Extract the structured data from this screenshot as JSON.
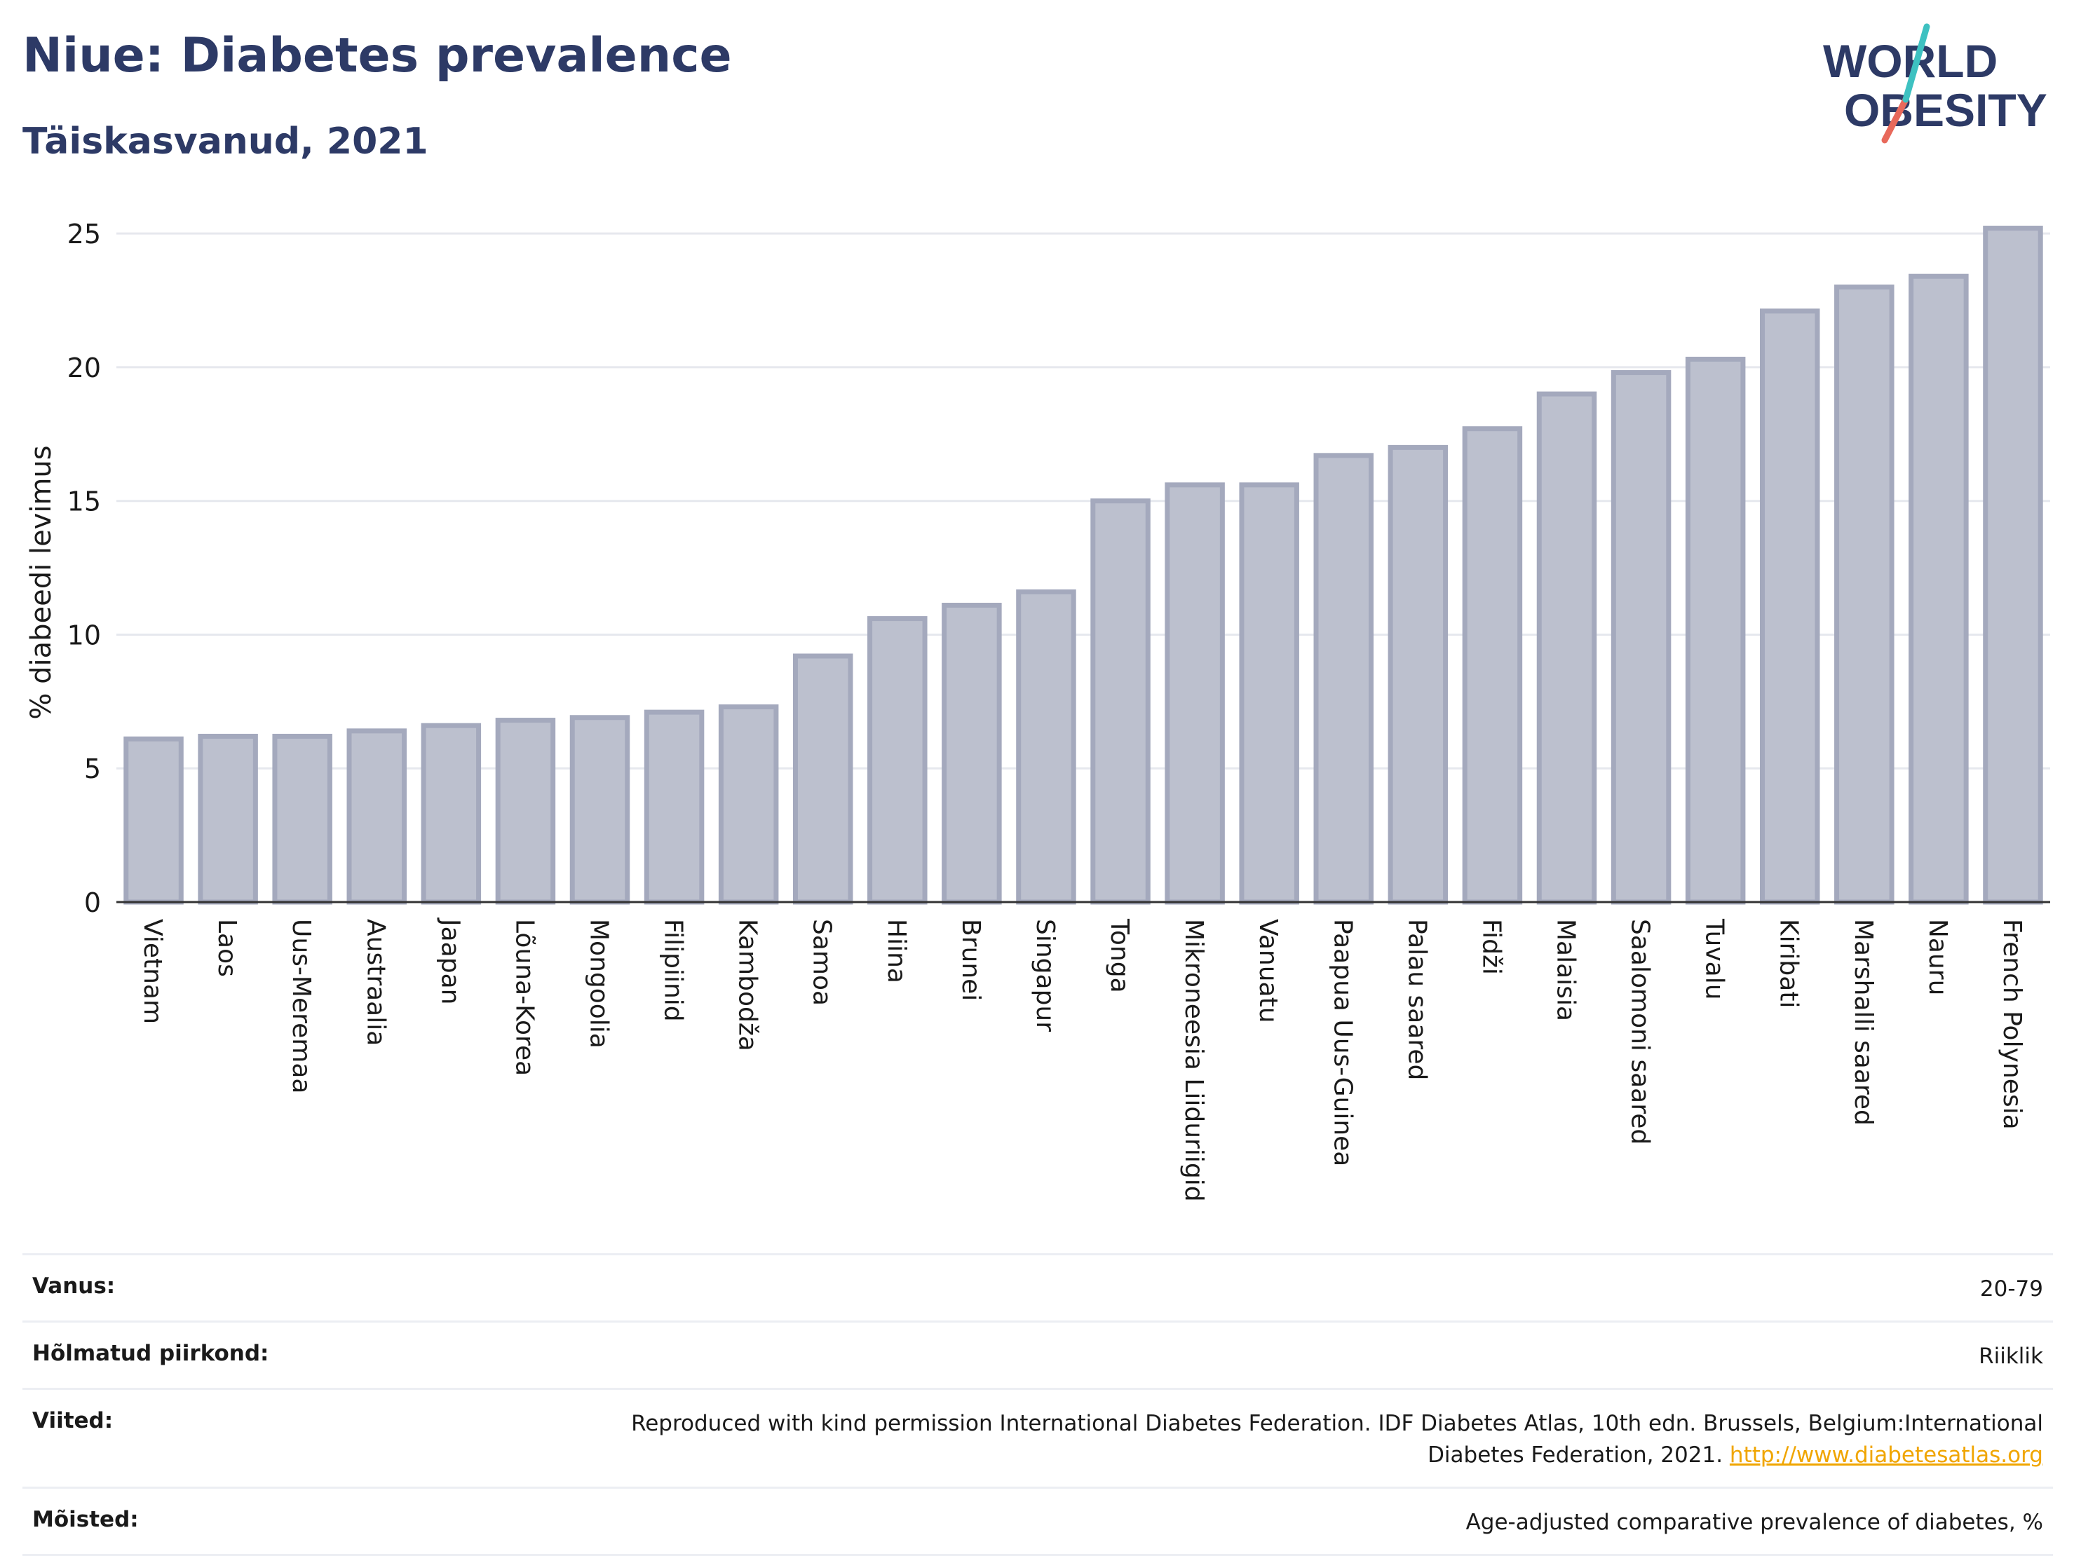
{
  "header": {
    "title": "Niue: Diabetes prevalence",
    "subtitle": "Täiskasvanud, 2021",
    "logo_line1": "WORLD",
    "logo_line2": "OBESITY"
  },
  "colors": {
    "bar_fill": "#bcc0ce",
    "bar_stroke": "#a4a9bd",
    "title": "#2d3a66",
    "logo_teal": "#3ec1c1",
    "logo_red": "#e8695b",
    "link": "#f0a500"
  },
  "chart_data": {
    "type": "bar",
    "ylabel": "% diabeedi levimus",
    "ylim": [
      0,
      26
    ],
    "yticks": [
      0,
      5,
      10,
      15,
      20,
      25
    ],
    "grid": true,
    "categories": [
      "Vietnam",
      "Laos",
      "Uus-Meremaa",
      "Austraalia",
      "Jaapan",
      "Lõuna-Korea",
      "Mongoolia",
      "Filipiinid",
      "Kambodža",
      "Samoa",
      "Hiina",
      "Brunei",
      "Singapur",
      "Tonga",
      "Mikroneesia Liiduriigid",
      "Vanuatu",
      "Paapua Uus-Guinea",
      "Palau saared",
      "Fidži",
      "Malaisia",
      "Saalomoni saared",
      "Tuvalu",
      "Kiribati",
      "Marshalli saared",
      "Nauru",
      "French Polynesia"
    ],
    "values": [
      6.1,
      6.2,
      6.2,
      6.4,
      6.6,
      6.8,
      6.9,
      7.1,
      7.3,
      9.2,
      10.6,
      11.1,
      11.6,
      15.0,
      15.6,
      15.6,
      16.7,
      17.0,
      17.7,
      19.0,
      19.8,
      20.3,
      22.1,
      23.0,
      23.4,
      25.2
    ]
  },
  "info": {
    "rows": [
      {
        "label": "Vanus:",
        "value": "20-79"
      },
      {
        "label": "Hõlmatud piirkond:",
        "value": "Riiklik"
      },
      {
        "label": "Viited:",
        "value": "Reproduced with kind permission International Diabetes Federation.  IDF Diabetes Atlas, 10th edn. Brussels, Belgium:International Diabetes Federation, 2021. ",
        "link": "http://www.diabetesatlas.org"
      },
      {
        "label": "Mõisted:",
        "value": "Age-adjusted comparative prevalence of diabetes, %"
      }
    ]
  }
}
